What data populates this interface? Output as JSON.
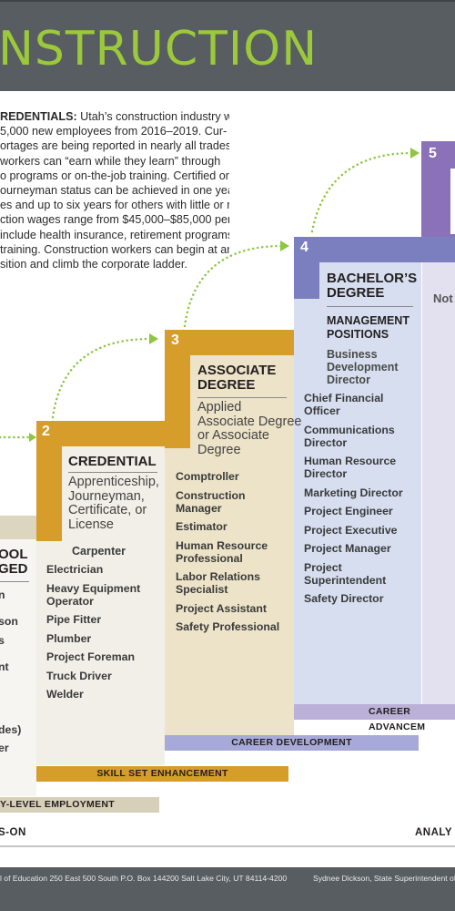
{
  "header": {
    "title": "NSTRUCTION"
  },
  "intro": {
    "label": "REDENTIALS:",
    "lines": [
      " Utah’s construction industry will",
      "5,000 new employees from 2016–2019. Cur-",
      "ortages are being reported in nearly all trades.",
      "workers can “earn while they learn” through",
      "o programs or on-the-job training. Certified or",
      "ourneyman status can be achieved in one year",
      "es and up to six years for others with little or no",
      "ction wages range from $45,000–$85,000 per",
      "include health insurance, retirement programs,",
      "training. Construction workers can begin at an",
      "sition and climb the corporate ladder."
    ]
  },
  "col1": {
    "title_l1": "OOL",
    "title_l2": "GED",
    "items": [
      "n",
      "",
      "son",
      "s",
      "",
      "nt",
      "",
      "",
      "",
      "des)",
      "er"
    ]
  },
  "col2": {
    "number": "2",
    "title": "CREDENTIAL",
    "subtitle_l1": "Apprenticeship,",
    "subtitle_l2": "Journeyman,",
    "subtitle_l3": "Certificate, or",
    "subtitle_l4": "License",
    "first": "Carpenter",
    "items": [
      "Electrician",
      "Heavy Equipment Operator",
      "Pipe Fitter",
      "Plumber",
      "Project Foreman",
      "Truck Driver",
      "Welder"
    ]
  },
  "col3": {
    "number": "3",
    "title_l1": "ASSOCIATE",
    "title_l2": "DEGREE",
    "subtitle_l1": "Applied",
    "subtitle_l2": "Associate Degree",
    "subtitle_l3": "or Associate",
    "subtitle_l4": "Degree",
    "items": [
      "Comptroller",
      "Construction Manager",
      "Estimator",
      "Human Resource Professional",
      "Labor Relations Specialist",
      "Project Assistant",
      "Safety Professional"
    ]
  },
  "col4": {
    "number": "4",
    "title_l1": "BACHELOR’S",
    "title_l2": "DEGREE",
    "sub_l1": "MANAGEMENT",
    "sub_l2": "POSITIONS",
    "sub3_l1": "Business",
    "sub3_l2": "Development",
    "sub3_l3": "Director",
    "items": [
      "Chief Financial Officer",
      "Communications Director",
      "Human Resource Director",
      "Marketing Director",
      "Project Engineer",
      "Project Executive",
      "Project Manager",
      "Project Superintendent",
      "Safety Director"
    ]
  },
  "col5": {
    "number": "5",
    "partial": "Not"
  },
  "bands": {
    "entry": "Y-LEVEL EMPLOYMENT",
    "skill": "SKILL SET ENHANCEMENT",
    "career_dev": "CAREER DEVELOPMENT",
    "career_adv": "CAREER ADVANCEM"
  },
  "bottom": {
    "left": "S-ON",
    "right": "ANALY"
  },
  "footer": {
    "left": "l of Education  250 East 500 South  P.O. Box 144200  Salt Lake City, UT 84114-4200",
    "right": "Sydnee Dickson, State Superintendent of P"
  },
  "colors": {
    "header_bg": "#575d61",
    "title_green": "#9cc93b",
    "gold": "#d69d2a",
    "tan": "#ece3c8",
    "lavender": "#7b7fbf",
    "light_blue": "#d6def0",
    "purple": "#8b72b8",
    "arrow_green": "#8dc63f"
  }
}
